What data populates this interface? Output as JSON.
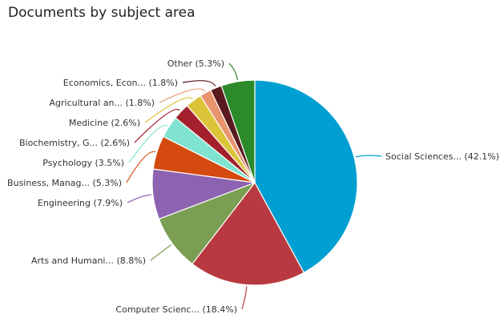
{
  "chart_data": {
    "type": "pie",
    "title": "Documents by subject area",
    "slices": [
      {
        "label": "Social Sciences... (42.1%)",
        "value": 42.1,
        "color": "#009fd1"
      },
      {
        "label": "Computer Scienc... (18.4%)",
        "value": 18.4,
        "color": "#b83a40"
      },
      {
        "label": "Arts and Humani... (8.8%)",
        "value": 8.8,
        "color": "#7a9e52"
      },
      {
        "label": "Engineering (7.9%)",
        "value": 7.9,
        "color": "#8d62b0"
      },
      {
        "label": "Business, Manag... (5.3%)",
        "value": 5.3,
        "color": "#d54a0e"
      },
      {
        "label": "Psychology (3.5%)",
        "value": 3.5,
        "color": "#7fe3d0"
      },
      {
        "label": "Biochemistry, G... (2.6%)",
        "value": 2.6,
        "color": "#a3202c"
      },
      {
        "label": "Medicine (2.6%)",
        "value": 2.6,
        "color": "#dcc43a"
      },
      {
        "label": "Agricultural an... (1.8%)",
        "value": 1.8,
        "color": "#e8956e"
      },
      {
        "label": "Economics, Econ... (1.8%)",
        "value": 1.8,
        "color": "#5a1a1e"
      },
      {
        "label": "Other (5.3%)",
        "value": 5.3,
        "color": "#2d8a2a"
      }
    ]
  }
}
